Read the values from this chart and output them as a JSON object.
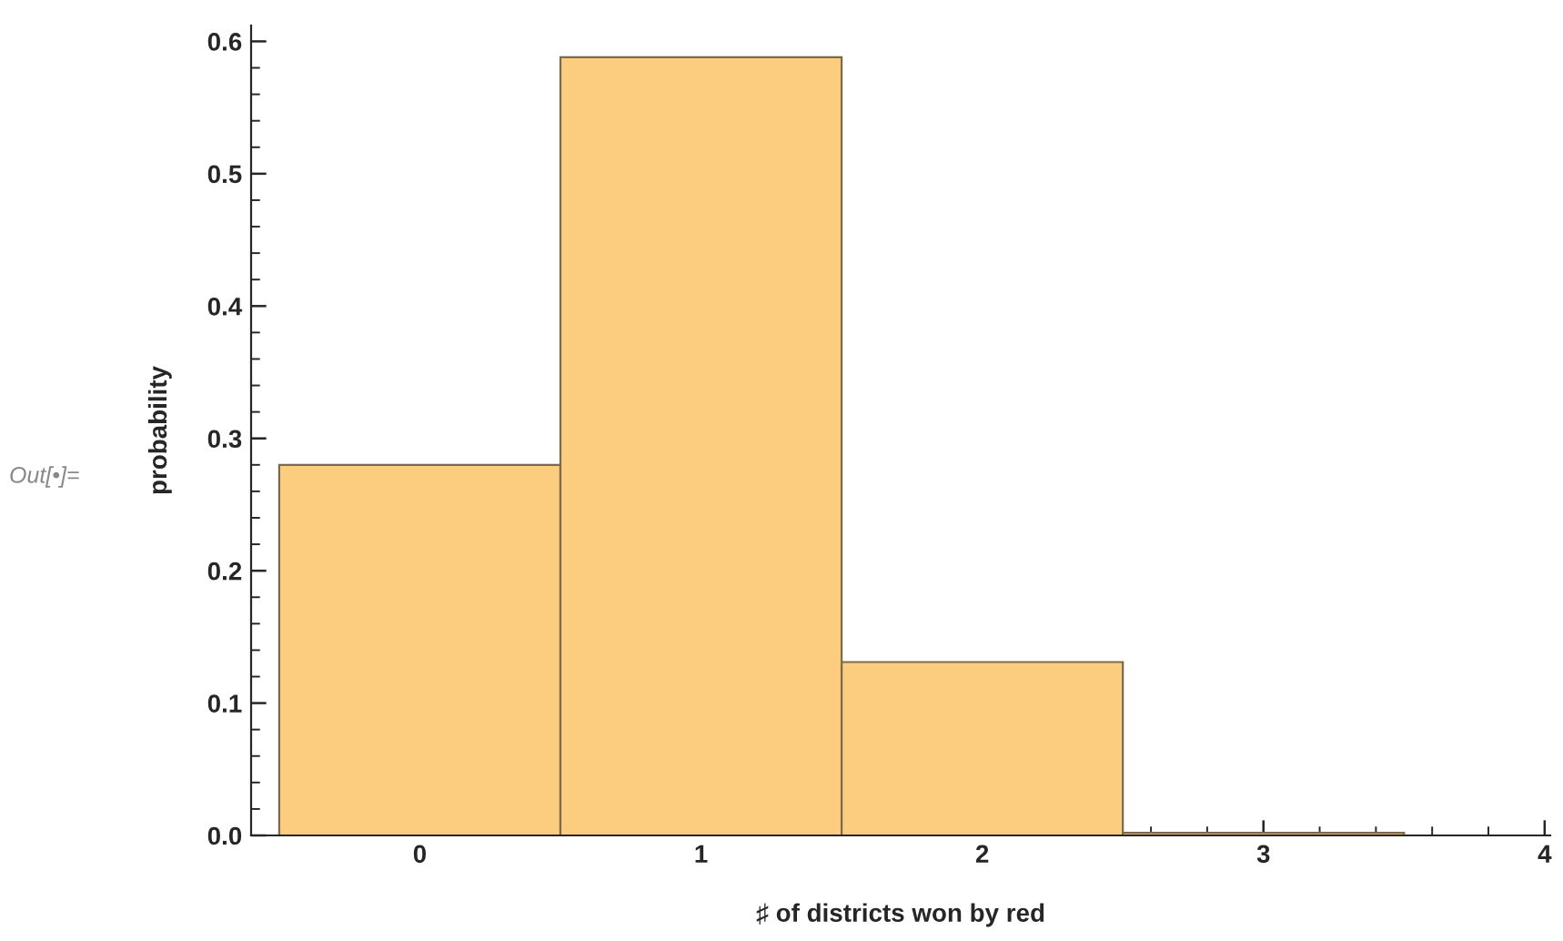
{
  "chart_data": {
    "type": "histogram",
    "xlabel": "♯ of districts won by red",
    "ylabel": "probability",
    "bins": [
      -0.5,
      0.5,
      1.5,
      2.5,
      3.5
    ],
    "values": [
      0.28,
      0.588,
      0.131,
      0.002
    ],
    "color": "#fccd7f",
    "xlim": [
      -0.6,
      4.02
    ],
    "ylim": [
      0,
      0.612
    ],
    "xticks": [
      0,
      1,
      2,
      3,
      4
    ],
    "yticks": [
      {
        "value": 0,
        "label": "0.0"
      },
      0.1,
      0.2,
      0.3,
      0.4,
      0.5,
      0.6
    ],
    "grid": false,
    "annotations": [
      "Out[•]="
    ]
  }
}
